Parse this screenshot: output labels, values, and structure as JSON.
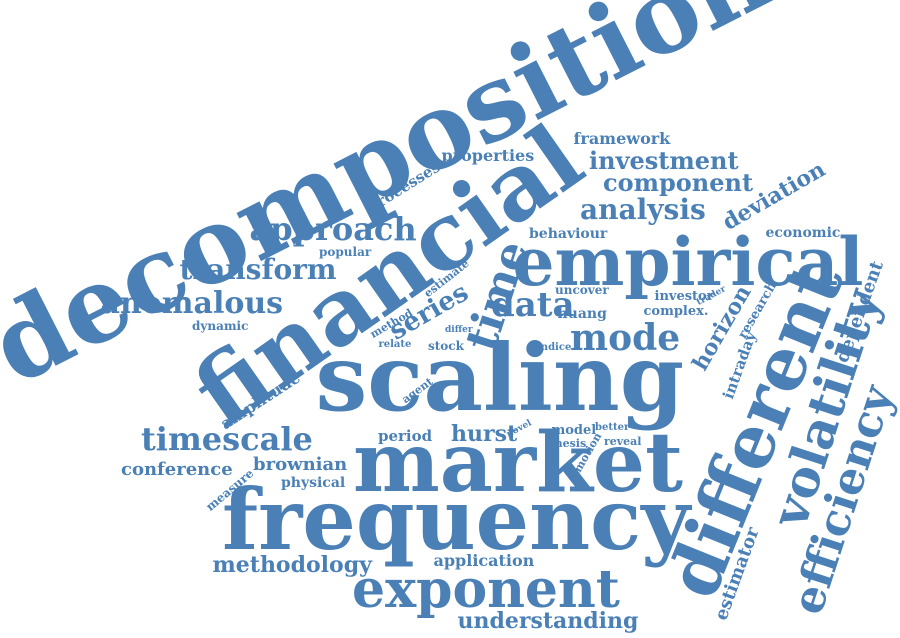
{
  "colors": {
    "word": "#4a80b6",
    "background": "#ffffff"
  },
  "words": [
    {
      "id": "decomposition",
      "text": "decomposition",
      "weight": 10.0
    },
    {
      "id": "financial",
      "text": "financial",
      "weight": 9.5
    },
    {
      "id": "scaling",
      "text": "scaling",
      "weight": 9.2
    },
    {
      "id": "frequency",
      "text": "frequency",
      "weight": 8.8
    },
    {
      "id": "market",
      "text": "market",
      "weight": 8.8
    },
    {
      "id": "different",
      "text": "different",
      "weight": 7.6
    },
    {
      "id": "empirical",
      "text": "empirical",
      "weight": 7.2
    },
    {
      "id": "volatility",
      "text": "volatility",
      "weight": 6.0
    },
    {
      "id": "efficiency",
      "text": "efficiency",
      "weight": 5.2
    },
    {
      "id": "exponent",
      "text": "exponent",
      "weight": 5.6
    },
    {
      "id": "time",
      "text": "time",
      "weight": 5.0
    },
    {
      "id": "mode",
      "text": "mode",
      "weight": 4.4
    },
    {
      "id": "data",
      "text": "data",
      "weight": 4.2
    },
    {
      "id": "timescale",
      "text": "timescale",
      "weight": 4.2
    },
    {
      "id": "anomalous",
      "text": "anomalous",
      "weight": 4.0
    },
    {
      "id": "approach",
      "text": "approach",
      "weight": 3.8
    },
    {
      "id": "transform",
      "text": "transform",
      "weight": 3.4
    },
    {
      "id": "analysis",
      "text": "analysis",
      "weight": 3.4
    },
    {
      "id": "series",
      "text": "series",
      "weight": 3.2
    },
    {
      "id": "component",
      "text": "component",
      "weight": 3.0
    },
    {
      "id": "investment",
      "text": "investment",
      "weight": 3.0
    },
    {
      "id": "horizon",
      "text": "horizon",
      "weight": 2.8
    },
    {
      "id": "deviation",
      "text": "deviation",
      "weight": 2.6
    },
    {
      "id": "methodology",
      "text": "methodology",
      "weight": 2.6
    },
    {
      "id": "understanding",
      "text": "understanding",
      "weight": 2.6
    },
    {
      "id": "hurst",
      "text": "hurst",
      "weight": 2.6
    },
    {
      "id": "dependent",
      "text": "dependent",
      "weight": 2.5
    },
    {
      "id": "estimator",
      "text": "estimator",
      "weight": 2.4
    },
    {
      "id": "brownian",
      "text": "brownian",
      "weight": 2.2
    },
    {
      "id": "conference",
      "text": "conference",
      "weight": 2.2
    },
    {
      "id": "processes",
      "text": "processes",
      "weight": 2.0
    },
    {
      "id": "intraday",
      "text": "intraday",
      "weight": 2.0
    },
    {
      "id": "framework",
      "text": "framework",
      "weight": 2.0
    },
    {
      "id": "properties",
      "text": "properties",
      "weight": 1.9
    },
    {
      "id": "amplitude",
      "text": "amplitude",
      "weight": 1.9
    },
    {
      "id": "application",
      "text": "application",
      "weight": 1.9
    },
    {
      "id": "behaviour",
      "text": "behaviour",
      "weight": 1.8
    },
    {
      "id": "period",
      "text": "period",
      "weight": 1.8
    },
    {
      "id": "economic",
      "text": "economic",
      "weight": 1.7
    },
    {
      "id": "research",
      "text": "research",
      "weight": 1.7
    },
    {
      "id": "uncover",
      "text": "uncover",
      "weight": 1.6
    },
    {
      "id": "huang",
      "text": "huang",
      "weight": 1.6
    },
    {
      "id": "complex",
      "text": "complex.",
      "weight": 1.6
    },
    {
      "id": "investor",
      "text": "investor",
      "weight": 1.6
    },
    {
      "id": "physical",
      "text": "physical",
      "weight": 1.6
    },
    {
      "id": "measure",
      "text": "measure",
      "weight": 1.5
    },
    {
      "id": "popular",
      "text": "popular",
      "weight": 1.4
    },
    {
      "id": "dynamic",
      "text": "dynamic",
      "weight": 1.4
    },
    {
      "id": "estimate",
      "text": "estimate",
      "weight": 1.4
    },
    {
      "id": "stock",
      "text": "stock",
      "weight": 1.4
    },
    {
      "id": "model",
      "text": "model",
      "weight": 1.4
    },
    {
      "id": "method",
      "text": "method",
      "weight": 1.3
    },
    {
      "id": "agent",
      "text": "agent",
      "weight": 1.3
    },
    {
      "id": "motion",
      "text": "motion",
      "weight": 1.3
    },
    {
      "id": "thesis",
      "text": "thesis",
      "weight": 1.3
    },
    {
      "id": "reveal",
      "text": "reveal",
      "weight": 1.3
    },
    {
      "id": "better",
      "text": "better",
      "weight": 1.2
    },
    {
      "id": "relate",
      "text": "relate",
      "weight": 1.2
    },
    {
      "id": "indice",
      "text": "indice",
      "weight": 1.2
    },
    {
      "id": "trader",
      "text": "trader",
      "weight": 1.1
    },
    {
      "id": "differ",
      "text": "differ",
      "weight": 1.1
    },
    {
      "id": "novel",
      "text": "novel",
      "weight": 1.0
    }
  ]
}
